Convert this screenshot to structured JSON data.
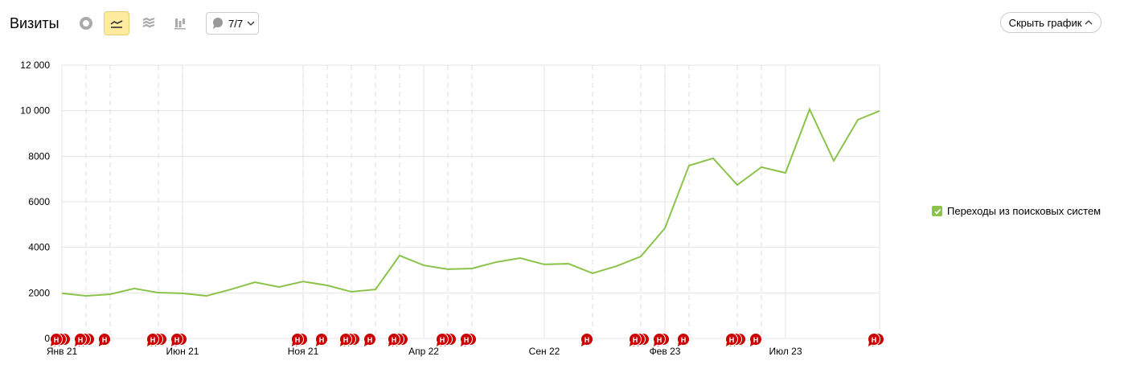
{
  "header": {
    "title": "Визиты",
    "notes_count": "7/7",
    "hide_label": "Скрыть график"
  },
  "toolbar": {
    "icons": [
      "pie-chart-icon",
      "line-chart-icon",
      "area-chart-icon",
      "bar-chart-icon"
    ],
    "active": "line-chart-icon"
  },
  "legend": {
    "label": "Переходы из поисковых систем",
    "checked": true,
    "color": "#8bc34a"
  },
  "chart_data": {
    "type": "line",
    "title": "",
    "ylim": [
      0,
      12000
    ],
    "yticks": [
      {
        "v": 0,
        "l": "0"
      },
      {
        "v": 2000,
        "l": "2000"
      },
      {
        "v": 4000,
        "l": "4000"
      },
      {
        "v": 6000,
        "l": "6000"
      },
      {
        "v": 8000,
        "l": "8000"
      },
      {
        "v": 10000,
        "l": "10 000"
      },
      {
        "v": 12000,
        "l": "12 000"
      }
    ],
    "xticks": [
      {
        "i": 0,
        "l": "Янв 21"
      },
      {
        "i": 5,
        "l": "Июн 21"
      },
      {
        "i": 10,
        "l": "Ноя 21"
      },
      {
        "i": 15,
        "l": "Апр 22"
      },
      {
        "i": 20,
        "l": "Сен 22"
      },
      {
        "i": 25,
        "l": "Фев 23"
      },
      {
        "i": 30,
        "l": "Июл 23"
      }
    ],
    "x": [
      "2021-01",
      "2021-02",
      "2021-03",
      "2021-04",
      "2021-05",
      "2021-06",
      "2021-07",
      "2021-08",
      "2021-09",
      "2021-10",
      "2021-11",
      "2021-12",
      "2022-01",
      "2022-02",
      "2022-03",
      "2022-04",
      "2022-05",
      "2022-06",
      "2022-07",
      "2022-08",
      "2022-09",
      "2022-10",
      "2022-11",
      "2022-12",
      "2023-01",
      "2023-02",
      "2023-03",
      "2023-04",
      "2023-05",
      "2023-06",
      "2023-07",
      "2023-08",
      "2023-09",
      "2023-10",
      "2023-11"
    ],
    "series": [
      {
        "name": "Переходы из поисковых систем",
        "color": "#8bc34a",
        "values": [
          1980,
          1870,
          1940,
          2190,
          2010,
          1980,
          1870,
          2150,
          2470,
          2260,
          2500,
          2330,
          2050,
          2150,
          3640,
          3210,
          3040,
          3070,
          3350,
          3530,
          3250,
          3280,
          2860,
          3180,
          3600,
          4840,
          7590,
          7910,
          6740,
          7520,
          7270,
          10060,
          7800,
          9600,
          9990
        ]
      }
    ],
    "grid": true,
    "annotation_marker": "Н",
    "annotations": [
      {
        "i": 0,
        "n": 3
      },
      {
        "i": 1,
        "n": 3
      },
      {
        "i": 2,
        "n": 1
      },
      {
        "i": 4,
        "n": 3
      },
      {
        "i": 5,
        "n": 2
      },
      {
        "i": 10,
        "n": 2
      },
      {
        "i": 11,
        "n": 1
      },
      {
        "i": 12,
        "n": 3
      },
      {
        "i": 13,
        "n": 1
      },
      {
        "i": 14,
        "n": 3
      },
      {
        "i": 16,
        "n": 3
      },
      {
        "i": 17,
        "n": 2
      },
      {
        "i": 22,
        "n": 1
      },
      {
        "i": 24,
        "n": 3
      },
      {
        "i": 25,
        "n": 2
      },
      {
        "i": 26,
        "n": 1
      },
      {
        "i": 28,
        "n": 3
      },
      {
        "i": 29,
        "n": 1
      },
      {
        "i": 34,
        "n": 2
      }
    ]
  }
}
